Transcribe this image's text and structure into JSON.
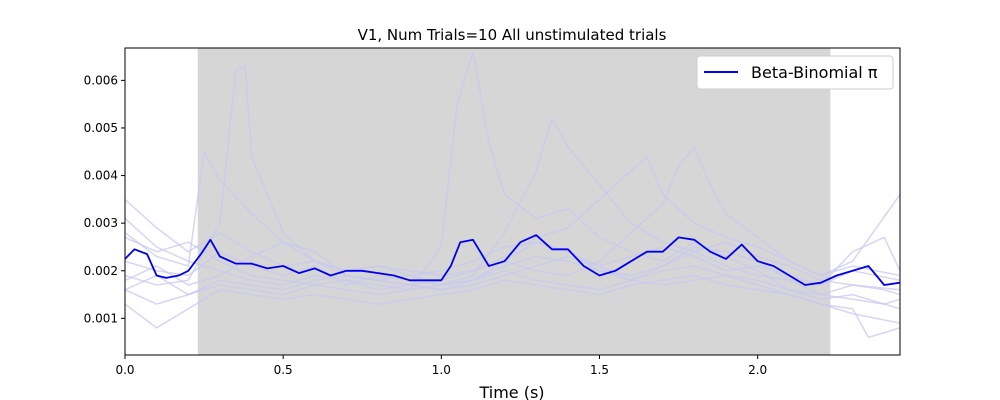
{
  "chart_data": {
    "type": "line",
    "title": "V1, Num Trials=10 All unstimulated trials",
    "xlabel": "Time (s)",
    "ylabel": "",
    "xlim": [
      0.0,
      2.45
    ],
    "ylim": [
      0.00023,
      0.00668
    ],
    "xticks": [
      0.0,
      0.5,
      1.0,
      1.5,
      2.0
    ],
    "xtick_labels": [
      "0.0",
      "0.5",
      "1.0",
      "1.5",
      "2.0"
    ],
    "yticks": [
      0.001,
      0.002,
      0.003,
      0.004,
      0.005,
      0.006
    ],
    "ytick_labels": [
      "0.001",
      "0.002",
      "0.003",
      "0.004",
      "0.005",
      "0.006"
    ],
    "grid": false,
    "legend": {
      "position": "top-right",
      "entries": [
        "Beta-Binomial π"
      ]
    },
    "shaded_region": {
      "x_start": 0.23,
      "x_end": 2.23,
      "color": "#d6d6d6"
    },
    "colors": {
      "main": "#0000ee",
      "trials": "#c8c8f0",
      "shade": "#d6d6d6"
    },
    "series": [
      {
        "name": "Beta-Binomial π",
        "color": "#0000ee",
        "x": [
          0.0,
          0.03,
          0.07,
          0.1,
          0.13,
          0.17,
          0.2,
          0.24,
          0.27,
          0.3,
          0.35,
          0.4,
          0.45,
          0.5,
          0.55,
          0.6,
          0.65,
          0.7,
          0.75,
          0.8,
          0.85,
          0.9,
          0.95,
          1.0,
          1.03,
          1.06,
          1.1,
          1.15,
          1.2,
          1.25,
          1.3,
          1.35,
          1.4,
          1.45,
          1.5,
          1.55,
          1.6,
          1.65,
          1.7,
          1.75,
          1.8,
          1.85,
          1.9,
          1.95,
          2.0,
          2.05,
          2.1,
          2.15,
          2.2,
          2.25,
          2.3,
          2.35,
          2.4,
          2.45
        ],
        "y": [
          0.00225,
          0.00245,
          0.00235,
          0.0019,
          0.00185,
          0.0019,
          0.002,
          0.00235,
          0.00265,
          0.0023,
          0.00215,
          0.00215,
          0.00205,
          0.0021,
          0.00195,
          0.00205,
          0.0019,
          0.002,
          0.002,
          0.00195,
          0.0019,
          0.0018,
          0.0018,
          0.0018,
          0.0021,
          0.0026,
          0.00265,
          0.0021,
          0.0022,
          0.0026,
          0.00275,
          0.00245,
          0.00245,
          0.0021,
          0.0019,
          0.002,
          0.0022,
          0.0024,
          0.0024,
          0.0027,
          0.00265,
          0.0024,
          0.00225,
          0.00255,
          0.0022,
          0.0021,
          0.0019,
          0.0017,
          0.00175,
          0.0019,
          0.002,
          0.0021,
          0.0017,
          0.00175
        ]
      }
    ],
    "trials": [
      {
        "x": [
          0.0,
          0.1,
          0.2,
          0.25,
          0.3,
          0.4,
          0.5,
          0.6,
          0.7,
          0.8,
          0.9,
          1.0,
          1.1,
          1.2,
          1.3,
          1.4,
          1.5,
          1.6,
          1.7,
          1.8,
          1.9,
          2.0,
          2.1,
          2.2,
          2.3,
          2.45
        ],
        "y": [
          0.0028,
          0.0023,
          0.0021,
          0.0045,
          0.0039,
          0.0032,
          0.0026,
          0.0022,
          0.002,
          0.0021,
          0.0019,
          0.0017,
          0.0018,
          0.0022,
          0.0026,
          0.0024,
          0.002,
          0.0018,
          0.0021,
          0.0025,
          0.0024,
          0.0022,
          0.0018,
          0.0015,
          0.0017,
          0.0016
        ]
      },
      {
        "x": [
          0.0,
          0.1,
          0.2,
          0.3,
          0.35,
          0.38,
          0.4,
          0.5,
          0.6,
          0.7,
          0.8,
          0.9,
          1.0,
          1.1,
          1.2,
          1.3,
          1.4,
          1.5,
          1.6,
          1.7,
          1.8,
          1.9,
          2.0,
          2.1,
          2.2,
          2.3,
          2.45
        ],
        "y": [
          0.0019,
          0.0017,
          0.0018,
          0.003,
          0.0062,
          0.0063,
          0.0044,
          0.0028,
          0.0022,
          0.0019,
          0.0018,
          0.0017,
          0.0016,
          0.0017,
          0.0019,
          0.0021,
          0.0023,
          0.0021,
          0.0018,
          0.0017,
          0.0018,
          0.0019,
          0.0017,
          0.0015,
          0.0013,
          0.0011,
          0.0009
        ]
      },
      {
        "x": [
          0.0,
          0.1,
          0.2,
          0.3,
          0.4,
          0.5,
          0.6,
          0.7,
          0.8,
          0.9,
          1.0,
          1.05,
          1.1,
          1.15,
          1.2,
          1.3,
          1.4,
          1.5,
          1.6,
          1.7,
          1.8,
          1.9,
          2.0,
          2.1,
          2.2,
          2.3,
          2.45
        ],
        "y": [
          0.0016,
          0.0013,
          0.0015,
          0.0017,
          0.0016,
          0.0015,
          0.0017,
          0.0016,
          0.0015,
          0.0016,
          0.0025,
          0.0055,
          0.0066,
          0.0047,
          0.0036,
          0.0031,
          0.0033,
          0.0027,
          0.0024,
          0.0022,
          0.0026,
          0.0023,
          0.002,
          0.0016,
          0.0014,
          0.0015,
          0.0012
        ]
      },
      {
        "x": [
          0.0,
          0.1,
          0.2,
          0.3,
          0.4,
          0.5,
          0.6,
          0.7,
          0.8,
          0.9,
          1.0,
          1.1,
          1.2,
          1.3,
          1.35,
          1.4,
          1.5,
          1.6,
          1.7,
          1.8,
          1.9,
          2.0,
          2.1,
          2.2,
          2.3,
          2.45
        ],
        "y": [
          0.0022,
          0.002,
          0.0019,
          0.0024,
          0.0021,
          0.0019,
          0.0021,
          0.0017,
          0.0019,
          0.0018,
          0.0017,
          0.0019,
          0.0028,
          0.0041,
          0.0052,
          0.0046,
          0.0038,
          0.003,
          0.0026,
          0.0024,
          0.0021,
          0.0019,
          0.0018,
          0.0017,
          0.002,
          0.0018
        ]
      },
      {
        "x": [
          0.0,
          0.1,
          0.2,
          0.3,
          0.4,
          0.5,
          0.6,
          0.7,
          0.8,
          0.9,
          1.0,
          1.1,
          1.2,
          1.3,
          1.4,
          1.5,
          1.6,
          1.7,
          1.75,
          1.8,
          1.85,
          1.9,
          2.0,
          2.1,
          2.2,
          2.3,
          2.45
        ],
        "y": [
          0.0031,
          0.0025,
          0.0022,
          0.002,
          0.0018,
          0.0017,
          0.0019,
          0.0018,
          0.0016,
          0.0017,
          0.0018,
          0.002,
          0.0022,
          0.002,
          0.0019,
          0.0022,
          0.0028,
          0.0034,
          0.0042,
          0.0046,
          0.0038,
          0.0032,
          0.0027,
          0.0022,
          0.0019,
          0.0021,
          0.0019
        ]
      },
      {
        "x": [
          0.0,
          0.1,
          0.2,
          0.3,
          0.4,
          0.5,
          0.6,
          0.7,
          0.8,
          0.9,
          1.0,
          1.1,
          1.2,
          1.3,
          1.4,
          1.5,
          1.6,
          1.65,
          1.7,
          1.8,
          1.9,
          2.0,
          2.1,
          2.2,
          2.3,
          2.45
        ],
        "y": [
          0.0035,
          0.0029,
          0.0024,
          0.0028,
          0.0024,
          0.0021,
          0.0022,
          0.002,
          0.0021,
          0.002,
          0.0019,
          0.002,
          0.0023,
          0.0027,
          0.0029,
          0.0035,
          0.0041,
          0.0044,
          0.0036,
          0.003,
          0.0027,
          0.0025,
          0.0022,
          0.0019,
          0.0022,
          0.0036
        ]
      },
      {
        "x": [
          0.0,
          0.1,
          0.2,
          0.3,
          0.4,
          0.5,
          0.6,
          0.7,
          0.8,
          0.9,
          1.0,
          1.1,
          1.2,
          1.3,
          1.4,
          1.5,
          1.6,
          1.7,
          1.8,
          1.9,
          2.0,
          2.1,
          2.2,
          2.3,
          2.35,
          2.45
        ],
        "y": [
          0.0013,
          0.0008,
          0.0012,
          0.0016,
          0.0015,
          0.0014,
          0.0015,
          0.0014,
          0.0013,
          0.0014,
          0.0015,
          0.0016,
          0.0018,
          0.0017,
          0.0016,
          0.0015,
          0.0017,
          0.0018,
          0.0019,
          0.0017,
          0.0016,
          0.0015,
          0.0013,
          0.0012,
          0.0006,
          0.0008
        ]
      },
      {
        "x": [
          0.0,
          0.1,
          0.2,
          0.3,
          0.4,
          0.5,
          0.6,
          0.7,
          0.8,
          0.9,
          1.0,
          1.1,
          1.2,
          1.3,
          1.4,
          1.5,
          1.6,
          1.7,
          1.8,
          1.9,
          2.0,
          2.1,
          2.2,
          2.3,
          2.4,
          2.45
        ],
        "y": [
          0.0018,
          0.0021,
          0.0017,
          0.0019,
          0.0023,
          0.0026,
          0.0024,
          0.0019,
          0.0018,
          0.0019,
          0.002,
          0.0022,
          0.0025,
          0.0026,
          0.0024,
          0.0021,
          0.0023,
          0.0025,
          0.0023,
          0.002,
          0.0021,
          0.0019,
          0.0017,
          0.0024,
          0.0027,
          0.002
        ]
      },
      {
        "x": [
          0.0,
          0.1,
          0.2,
          0.3,
          0.4,
          0.5,
          0.6,
          0.7,
          0.8,
          0.9,
          1.0,
          1.1,
          1.2,
          1.3,
          1.4,
          1.5,
          1.6,
          1.7,
          1.8,
          1.9,
          2.0,
          2.1,
          2.2,
          2.3,
          2.4,
          2.45
        ],
        "y": [
          0.0027,
          0.0024,
          0.0026,
          0.0022,
          0.0019,
          0.0018,
          0.0017,
          0.0018,
          0.0017,
          0.0016,
          0.0017,
          0.0018,
          0.0021,
          0.0023,
          0.0022,
          0.002,
          0.0019,
          0.0021,
          0.0024,
          0.0026,
          0.0023,
          0.0021,
          0.0018,
          0.0017,
          0.0016,
          0.0015
        ]
      },
      {
        "x": [
          0.0,
          0.1,
          0.2,
          0.3,
          0.4,
          0.5,
          0.6,
          0.7,
          0.8,
          0.9,
          1.0,
          1.1,
          1.2,
          1.3,
          1.4,
          1.5,
          1.6,
          1.7,
          1.8,
          1.9,
          2.0,
          2.1,
          2.2,
          2.3,
          2.4,
          2.45
        ],
        "y": [
          0.0016,
          0.0019,
          0.0015,
          0.0018,
          0.0017,
          0.0016,
          0.0018,
          0.0019,
          0.0018,
          0.0017,
          0.0016,
          0.0018,
          0.002,
          0.0018,
          0.0017,
          0.0016,
          0.0018,
          0.002,
          0.0021,
          0.0019,
          0.0018,
          0.0016,
          0.0015,
          0.0014,
          0.0013,
          0.0014
        ]
      }
    ]
  }
}
